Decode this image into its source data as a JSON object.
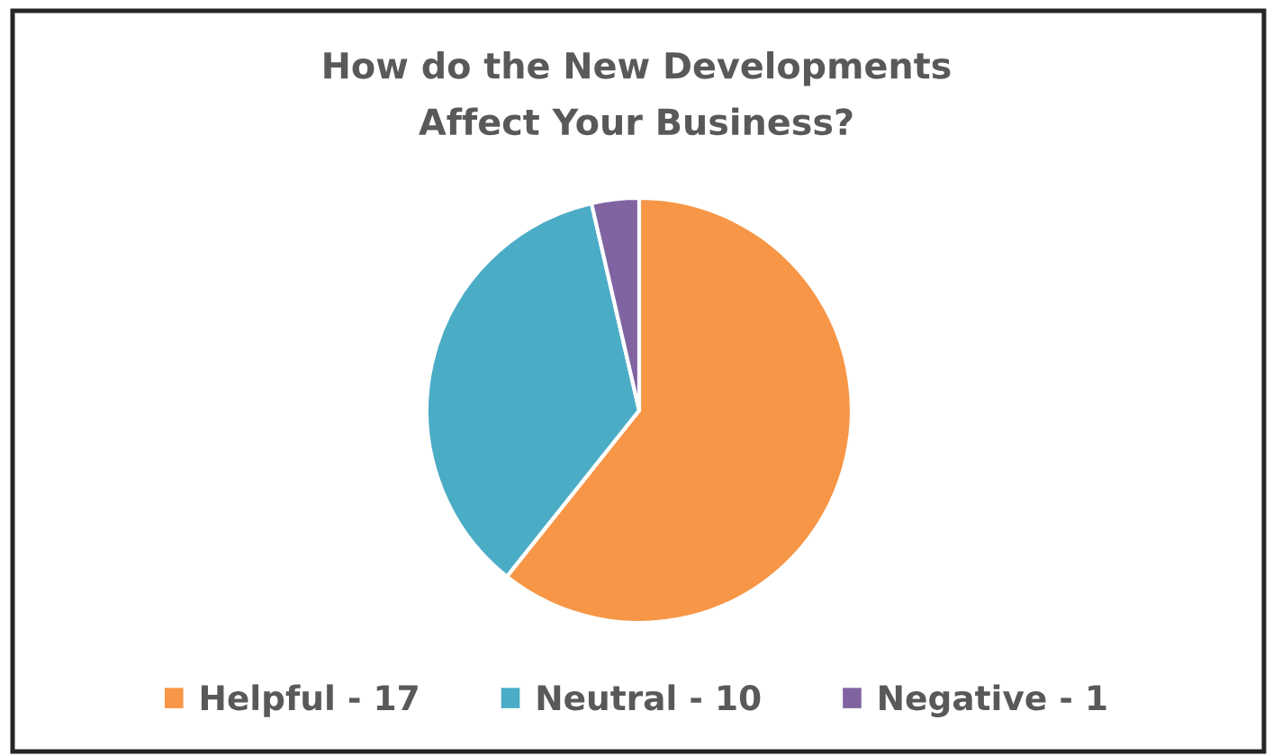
{
  "chart_data": {
    "type": "pie",
    "title": "How do the New Developments\nAffect Your Business?",
    "categories": [
      "Helpful - 17",
      "Neutral - 10",
      "Negative - 1"
    ],
    "values": [
      60.7,
      35.7,
      3.6
    ],
    "colors": [
      "#f79646",
      "#4bacc6",
      "#8064a2"
    ],
    "legend": "bottom"
  }
}
